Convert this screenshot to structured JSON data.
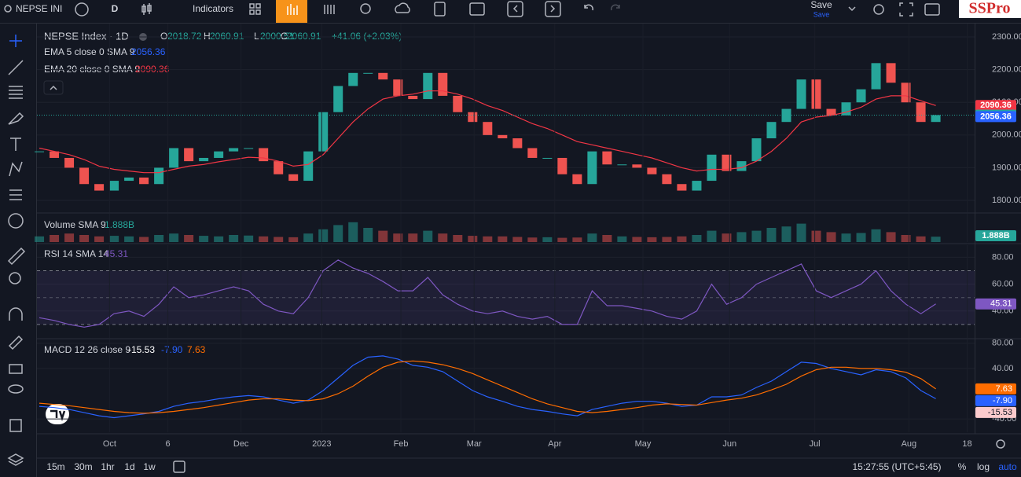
{
  "toolbar": {
    "symbol": "NEPSE INI",
    "interval": "D",
    "indicators": "Indicators",
    "save": "Save",
    "save_sub": "Save",
    "brand": "SSPro"
  },
  "chart_data": [
    {
      "type": "candlestick",
      "title": "NEPSE Index · 1D",
      "ohlc": [
        {
          "label": "O",
          "value": "2018.72"
        },
        {
          "label": "H",
          "value": "2060.91"
        },
        {
          "label": "L",
          "value": "2000.51"
        },
        {
          "label": "C",
          "value": "2060.91"
        }
      ],
      "change": "+41.06 (+2.03%)",
      "up_color": "#26a69a",
      "down_color": "#ef5350",
      "values": [
        1950,
        1930,
        1900,
        1850,
        1830,
        1860,
        1870,
        1850,
        1900,
        1960,
        1920,
        1930,
        1950,
        1960,
        1960,
        1920,
        1880,
        1860,
        1950,
        2070,
        2150,
        2190,
        2190,
        2170,
        2120,
        2110,
        2190,
        2120,
        2070,
        2040,
        2000,
        1990,
        1960,
        1930,
        1930,
        1880,
        1850,
        1950,
        1910,
        1910,
        1900,
        1880,
        1850,
        1830,
        1860,
        1940,
        1890,
        1920,
        1990,
        2040,
        2080,
        2170,
        2080,
        2060,
        2100,
        2140,
        2220,
        2160,
        2100,
        2040,
        2060.91
      ],
      "overlays": [
        {
          "name": "EMA 5 close 0 SMA 9",
          "color": "#2962ff",
          "last": "2056.36"
        },
        {
          "name": "EMA 20 close 0 SMA 9",
          "color": "#f23645",
          "last": "2090.36",
          "values": [
            1960,
            1950,
            1940,
            1925,
            1905,
            1895,
            1890,
            1885,
            1885,
            1895,
            1905,
            1910,
            1918,
            1925,
            1932,
            1930,
            1920,
            1905,
            1910,
            1940,
            1990,
            2040,
            2080,
            2110,
            2120,
            2125,
            2135,
            2135,
            2125,
            2110,
            2090,
            2075,
            2055,
            2035,
            2020,
            2000,
            1980,
            1970,
            1960,
            1950,
            1940,
            1930,
            1915,
            1900,
            1890,
            1895,
            1895,
            1900,
            1920,
            1950,
            1990,
            2040,
            2055,
            2060,
            2070,
            2085,
            2110,
            2120,
            2120,
            2105,
            2090.36
          ]
        }
      ],
      "last_labels": [
        {
          "value": 2090.36,
          "color": "#f23645"
        },
        {
          "value": 2060.91,
          "color": "#26a69a"
        },
        {
          "value": 2056.36,
          "color": "#2962ff"
        }
      ],
      "xlim": [
        -0.16,
        62.6
      ],
      "ylim": [
        1764,
        2341
      ],
      "yticks": [
        {
          "value": 1800,
          "label": "1800.00"
        },
        {
          "value": 1900,
          "label": "1900.00"
        },
        {
          "value": 2000,
          "label": "2000.00"
        },
        {
          "value": 2100,
          "label": "2100.00"
        },
        {
          "value": 2200,
          "label": "2200.00"
        },
        {
          "value": 2300,
          "label": "2300.00"
        }
      ]
    },
    {
      "type": "bar",
      "title": "Volume SMA 9",
      "last": {
        "value": 1.888,
        "label": "1.888B"
      },
      "up_color": "#26a69a",
      "down_color": "#ef5350",
      "values": [
        2,
        2.5,
        3,
        2.5,
        2,
        2.2,
        2,
        1.8,
        2.5,
        3,
        2.5,
        2.2,
        2,
        2.5,
        2.3,
        2,
        1.8,
        1.7,
        3,
        4.5,
        6,
        7,
        5,
        4,
        3,
        3,
        4,
        3,
        2.5,
        2.2,
        2,
        2,
        1.8,
        1.6,
        1.7,
        1.5,
        1.6,
        3,
        2.5,
        2,
        1.8,
        1.7,
        1.8,
        2,
        2.5,
        4,
        3,
        3.5,
        4,
        5,
        5.5,
        6.5,
        4,
        3.5,
        3,
        3.2,
        4.5,
        3.5,
        2.5,
        2,
        1.888
      ],
      "xlim": [
        -0.16,
        62.6
      ],
      "ylim": [
        0,
        10
      ]
    },
    {
      "type": "line",
      "title": "RSI 14 SMA 14",
      "color": "#7e57c2",
      "last": 45.31,
      "band": [
        30,
        70
      ],
      "midline": 50,
      "values": [
        35,
        33,
        30,
        28,
        30,
        38,
        40,
        36,
        45,
        58,
        50,
        52,
        55,
        58,
        55,
        45,
        40,
        38,
        50,
        70,
        78,
        72,
        68,
        62,
        55,
        55,
        65,
        52,
        45,
        40,
        38,
        40,
        36,
        34,
        36,
        30,
        30,
        55,
        44,
        44,
        42,
        40,
        36,
        34,
        40,
        60,
        45,
        50,
        60,
        65,
        70,
        75,
        55,
        50,
        55,
        60,
        70,
        55,
        45,
        38,
        45.31
      ],
      "xlim": [
        -0.16,
        62.6
      ],
      "ylim": [
        20,
        89
      ],
      "yticks": [
        {
          "value": 40,
          "label": "40.00"
        },
        {
          "value": 60,
          "label": "60.00"
        },
        {
          "value": 80,
          "label": "80.00"
        }
      ]
    },
    {
      "type": "line",
      "title": "MACD 12 26 close 9",
      "histogram_last": {
        "value": -15.53,
        "color": "#fccbcd"
      },
      "series": [
        {
          "color": "#2962ff",
          "last": {
            "value": -7.9,
            "label": "-7.90"
          },
          "values": [
            -20,
            -22,
            -25,
            -30,
            -35,
            -38,
            -35,
            -32,
            -28,
            -20,
            -15,
            -12,
            -8,
            -5,
            -3,
            -5,
            -10,
            -15,
            -10,
            5,
            25,
            45,
            58,
            60,
            55,
            45,
            42,
            35,
            20,
            5,
            -5,
            -12,
            -20,
            -25,
            -28,
            -32,
            -35,
            -25,
            -20,
            -15,
            -12,
            -12,
            -15,
            -20,
            -18,
            -5,
            -5,
            -2,
            10,
            20,
            35,
            50,
            48,
            40,
            35,
            30,
            38,
            35,
            25,
            5,
            -7.9
          ]
        },
        {
          "color": "#ff6d00",
          "last": {
            "value": 7.63,
            "label": "7.63"
          },
          "values": [
            -15,
            -17,
            -19,
            -22,
            -25,
            -28,
            -30,
            -31,
            -30,
            -28,
            -25,
            -22,
            -18,
            -14,
            -10,
            -8,
            -8,
            -10,
            -11,
            -8,
            0,
            12,
            28,
            42,
            50,
            52,
            50,
            46,
            40,
            32,
            22,
            12,
            2,
            -8,
            -16,
            -22,
            -28,
            -30,
            -28,
            -25,
            -22,
            -18,
            -16,
            -17,
            -18,
            -14,
            -10,
            -7,
            -2,
            6,
            15,
            28,
            38,
            42,
            42,
            40,
            40,
            38,
            34,
            24,
            7.63
          ]
        }
      ],
      "xlim": [
        -0.16,
        62.6
      ],
      "ylim": [
        -61,
        86
      ],
      "yticks": [
        {
          "value": -40,
          "label": "-40.00"
        },
        {
          "value": 40,
          "label": "40.00"
        },
        {
          "value": 80,
          "label": "80.00"
        }
      ],
      "xticks": [
        {
          "value": 4.7,
          "label": "Oct"
        },
        {
          "value": 8.6,
          "label": "6"
        },
        {
          "value": 13.5,
          "label": "Dec"
        },
        {
          "value": 18.9,
          "label": "2023"
        },
        {
          "value": 24.2,
          "label": "Feb"
        },
        {
          "value": 29.1,
          "label": "Mar"
        },
        {
          "value": 34.5,
          "label": "Apr"
        },
        {
          "value": 40.4,
          "label": "May"
        },
        {
          "value": 46.2,
          "label": "Jun"
        },
        {
          "value": 51.9,
          "label": "Jul"
        },
        {
          "value": 58.2,
          "label": "Aug"
        },
        {
          "value": 62.1,
          "label": "18"
        }
      ]
    }
  ],
  "bottom": {
    "ranges": [
      "15m",
      "30m",
      "1hr",
      "1d",
      "1w"
    ],
    "clock": "15:27:55 (UTC+5:45)",
    "percent": "%",
    "log": "log",
    "auto": "auto"
  }
}
